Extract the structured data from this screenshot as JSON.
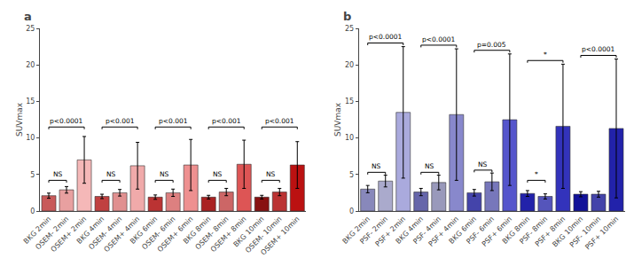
{
  "chart_data": [
    {
      "type": "bar",
      "title": "a",
      "ylabel": "SUVmax",
      "categories": [
        "BKG 2min",
        "OSEM- 2min",
        "OSEM+ 2min",
        "BKG 4min",
        "OSEM- 4min",
        "OSEM+ 4min",
        "BKG 6min",
        "OSEM- 6min",
        "OSEM+ 6min",
        "BKG 8min",
        "OSEM- 8min",
        "OSEM+ 8min",
        "BKG 10min",
        "OSEM- 10min",
        "OSEM+ 10min"
      ],
      "values": [
        2.1,
        2.9,
        7.0,
        2.0,
        2.5,
        6.2,
        1.9,
        2.5,
        6.3,
        1.9,
        2.6,
        6.4,
        1.9,
        2.6,
        6.3
      ],
      "errors": [
        0.35,
        0.45,
        3.2,
        0.3,
        0.45,
        3.2,
        0.3,
        0.5,
        3.5,
        0.25,
        0.5,
        3.3,
        0.25,
        0.5,
        3.2
      ],
      "colors": [
        "#c85a5a",
        "#e8a0a0",
        "#f5b8b8",
        "#c04040",
        "#e09090",
        "#f0aaaa",
        "#bb3333",
        "#dd8080",
        "#ee9090",
        "#aa2222",
        "#cc6666",
        "#dd5555",
        "#881111",
        "#bb3333",
        "#bb1111"
      ],
      "ylim": [
        0,
        25
      ],
      "yticks": [
        0,
        5,
        10,
        15,
        20,
        25
      ],
      "grid": false,
      "annotations": [
        {
          "text": "NS",
          "from": "BKG 2min",
          "to": "OSEM- 2min",
          "y": 4.2
        },
        {
          "text": "p<0.0001",
          "from": "BKG 2min",
          "to": "OSEM+ 2min",
          "y": 11.5
        },
        {
          "text": "NS",
          "from": "BKG 4min",
          "to": "OSEM- 4min",
          "y": 4.2
        },
        {
          "text": "p<0.001",
          "from": "BKG 4min",
          "to": "OSEM+ 4min",
          "y": 11.5
        },
        {
          "text": "NS",
          "from": "BKG 6min",
          "to": "OSEM- 6min",
          "y": 4.2
        },
        {
          "text": "p<0.001",
          "from": "BKG 6min",
          "to": "OSEM+ 6min",
          "y": 11.5
        },
        {
          "text": "NS",
          "from": "BKG 8min",
          "to": "OSEM- 8min",
          "y": 4.2
        },
        {
          "text": "p<0.001",
          "from": "BKG 8min",
          "to": "OSEM+ 8min",
          "y": 11.5
        },
        {
          "text": "NS",
          "from": "BKG 10min",
          "to": "OSEM- 10min",
          "y": 4.2
        },
        {
          "text": "p<0.001",
          "from": "BKG 10min",
          "to": "OSEM+ 10min",
          "y": 11.5
        }
      ]
    },
    {
      "type": "bar",
      "title": "b",
      "ylabel": "SUVmax",
      "categories": [
        "BKG 2min",
        "PSF- 2min",
        "PSF+ 2min",
        "BKG 4min",
        "PSF- 4min",
        "PSF+ 4min",
        "BKG 6min",
        "PSF- 6min",
        "PSF+ 6min",
        "BKG 8min",
        "PSF- 8min",
        "PSF+ 8min",
        "BKG 10min",
        "PSF- 10min",
        "PSF+ 10min"
      ],
      "values": [
        3.0,
        4.1,
        13.5,
        2.6,
        3.9,
        13.2,
        2.5,
        4.0,
        12.5,
        2.4,
        2.0,
        11.6,
        2.3,
        2.3,
        11.3
      ],
      "errors": [
        0.5,
        0.8,
        9.0,
        0.5,
        1.0,
        9.0,
        0.45,
        1.2,
        9.0,
        0.4,
        0.35,
        8.5,
        0.35,
        0.4,
        9.5
      ],
      "colors": [
        "#8888bb",
        "#aaaacc",
        "#aaaadd",
        "#6666aa",
        "#9999bb",
        "#8888cc",
        "#4444aa",
        "#7777bb",
        "#5555cc",
        "#2222aa",
        "#5555bb",
        "#3333bb",
        "#111199",
        "#4444aa",
        "#2222aa"
      ],
      "ylim": [
        0,
        25
      ],
      "yticks": [
        0,
        5,
        10,
        15,
        20,
        25
      ],
      "grid": false,
      "annotations": [
        {
          "text": "NS",
          "from": "BKG 2min",
          "to": "PSF- 2min",
          "y": 5.3
        },
        {
          "text": "p<0.0001",
          "from": "BKG 2min",
          "to": "PSF+ 2min",
          "y": 23.0
        },
        {
          "text": "NS",
          "from": "BKG 4min",
          "to": "PSF- 4min",
          "y": 5.3
        },
        {
          "text": "p<0.0001",
          "from": "BKG 4min",
          "to": "PSF+ 4min",
          "y": 22.7
        },
        {
          "text": "NS",
          "from": "BKG 6min",
          "to": "PSF- 6min",
          "y": 5.6
        },
        {
          "text": "p=0.005",
          "from": "BKG 6min",
          "to": "PSF+ 6min",
          "y": 22.0
        },
        {
          "text": "*",
          "from": "BKG 8min",
          "to": "PSF- 8min",
          "y": 4.2
        },
        {
          "text": "*",
          "from": "BKG 8min",
          "to": "PSF+ 8min",
          "y": 20.6
        },
        {
          "text": "p<0.0001",
          "from": "BKG 10min",
          "to": "PSF+ 10min",
          "y": 21.3
        }
      ]
    }
  ]
}
